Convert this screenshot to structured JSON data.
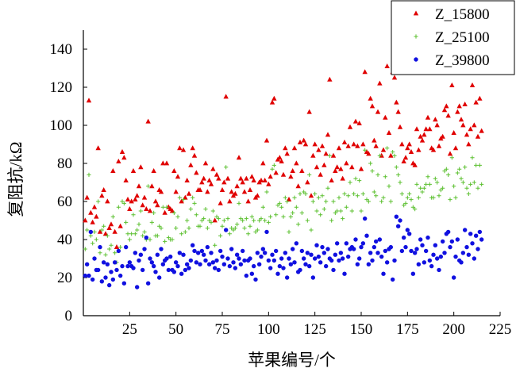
{
  "chart_data": {
    "type": "scatter",
    "xlabel": "苹果编号/个",
    "ylabel": "复阻抗/kΩ",
    "xlim": [
      0,
      225
    ],
    "ylim": [
      0,
      150
    ],
    "xticks": [
      25,
      50,
      75,
      100,
      125,
      150,
      175,
      200,
      225
    ],
    "yticks": [
      0,
      20,
      40,
      60,
      80,
      100,
      120,
      140
    ],
    "grid": false,
    "legend_position": "top-right",
    "series": [
      {
        "name": "Z_15800",
        "marker": "triangle",
        "color": "#e00000",
        "x": [
          1,
          2,
          3,
          4,
          5,
          6,
          7,
          8,
          9,
          10,
          11,
          12,
          13,
          14,
          15,
          16,
          17,
          18,
          19,
          20,
          21,
          22,
          23,
          24,
          25,
          26,
          27,
          28,
          29,
          30,
          31,
          32,
          33,
          34,
          35,
          36,
          37,
          38,
          39,
          40,
          41,
          42,
          43,
          44,
          45,
          46,
          47,
          48,
          49,
          50,
          51,
          52,
          53,
          54,
          55,
          56,
          57,
          58,
          59,
          60,
          61,
          62,
          63,
          64,
          65,
          66,
          67,
          68,
          69,
          70,
          71,
          72,
          73,
          74,
          75,
          76,
          77,
          78,
          79,
          80,
          81,
          82,
          83,
          84,
          85,
          86,
          87,
          88,
          89,
          90,
          91,
          92,
          93,
          94,
          95,
          96,
          97,
          98,
          99,
          100,
          101,
          102,
          103,
          104,
          105,
          106,
          107,
          108,
          109,
          110,
          111,
          112,
          113,
          114,
          115,
          116,
          117,
          118,
          119,
          120,
          121,
          122,
          123,
          124,
          125,
          126,
          127,
          128,
          129,
          130,
          131,
          132,
          133,
          134,
          135,
          136,
          137,
          138,
          139,
          140,
          141,
          142,
          143,
          144,
          145,
          146,
          147,
          148,
          149,
          150,
          151,
          152,
          153,
          154,
          155,
          156,
          157,
          158,
          159,
          160,
          161,
          162,
          163,
          164,
          165,
          166,
          167,
          168,
          169,
          170,
          171,
          172,
          173,
          174,
          175,
          176,
          177,
          178,
          179,
          180,
          181,
          182,
          183,
          184,
          185,
          186,
          187,
          188,
          189,
          190,
          191,
          192,
          193,
          194,
          195,
          196,
          197,
          198,
          199,
          200,
          201,
          202,
          203,
          204,
          205,
          206,
          207,
          208,
          209,
          210,
          211,
          212,
          213,
          214,
          215
        ],
        "y": [
          50,
          62,
          113,
          54,
          49,
          57,
          52,
          88,
          44,
          63,
          66,
          43,
          60,
          46,
          48,
          76,
          44,
          36,
          81,
          47,
          86,
          83,
          71,
          61,
          56,
          60,
          76,
          61,
          63,
          68,
          78,
          58,
          62,
          56,
          102,
          55,
          68,
          76,
          60,
          58,
          66,
          65,
          80,
          54,
          80,
          57,
          56,
          55,
          76,
          65,
          73,
          88,
          60,
          87,
          62,
          71,
          64,
          79,
          88,
          84,
          75,
          66,
          66,
          70,
          72,
          80,
          65,
          71,
          69,
          77,
          50,
          74,
          72,
          59,
          66,
          70,
          115,
          72,
          60,
          65,
          63,
          64,
          68,
          83,
          72,
          70,
          65,
          72,
          60,
          66,
          73,
          71,
          62,
          63,
          70,
          71,
          80,
          71,
          92,
          69,
          73,
          112,
          114,
          75,
          82,
          83,
          81,
          74,
          88,
          85,
          61,
          73,
          76,
          88,
          80,
          68,
          91,
          76,
          92,
          90,
          70,
          107,
          63,
          84,
          90,
          78,
          87,
          74,
          89,
          79,
          85,
          95,
          124,
          71,
          84,
          76,
          78,
          88,
          77,
          72,
          91,
          80,
          89,
          99,
          78,
          90,
          102,
          89,
          101,
          77,
          90,
          128,
          86,
          85,
          114,
          110,
          92,
          89,
          107,
          122,
          84,
          87,
          104,
          131,
          96,
          84,
          128,
          125,
          112,
          107,
          99,
          90,
          81,
          83,
          88,
          90,
          86,
          80,
          79,
          98,
          87,
          94,
          92,
          95,
          98,
          104,
          98,
          88,
          87,
          103,
          100,
          89,
          93,
          94,
          108,
          110,
          105,
          85,
          121,
          96,
          88,
          107,
          110,
          103,
          100,
          111,
          95,
          90,
          98,
          121,
          100,
          112,
          94,
          114,
          97
        ]
      },
      {
        "name": "Z_25100",
        "marker": "plus",
        "color": "#5cc030",
        "x": [
          1,
          2,
          3,
          4,
          5,
          6,
          7,
          8,
          9,
          10,
          11,
          12,
          13,
          14,
          15,
          16,
          17,
          18,
          19,
          20,
          21,
          22,
          23,
          24,
          25,
          26,
          27,
          28,
          29,
          30,
          31,
          32,
          33,
          34,
          35,
          36,
          37,
          38,
          39,
          40,
          41,
          42,
          43,
          44,
          45,
          46,
          47,
          48,
          49,
          50,
          51,
          52,
          53,
          54,
          55,
          56,
          57,
          58,
          59,
          60,
          61,
          62,
          63,
          64,
          65,
          66,
          67,
          68,
          69,
          70,
          71,
          72,
          73,
          74,
          75,
          76,
          77,
          78,
          79,
          80,
          81,
          82,
          83,
          84,
          85,
          86,
          87,
          88,
          89,
          90,
          91,
          92,
          93,
          94,
          95,
          96,
          97,
          98,
          99,
          100,
          101,
          102,
          103,
          104,
          105,
          106,
          107,
          108,
          109,
          110,
          111,
          112,
          113,
          114,
          115,
          116,
          117,
          118,
          119,
          120,
          121,
          122,
          123,
          124,
          125,
          126,
          127,
          128,
          129,
          130,
          131,
          132,
          133,
          134,
          135,
          136,
          137,
          138,
          139,
          140,
          141,
          142,
          143,
          144,
          145,
          146,
          147,
          148,
          149,
          150,
          151,
          152,
          153,
          154,
          155,
          156,
          157,
          158,
          159,
          160,
          161,
          162,
          163,
          164,
          165,
          166,
          167,
          168,
          169,
          170,
          171,
          172,
          173,
          174,
          175,
          176,
          177,
          178,
          179,
          180,
          181,
          182,
          183,
          184,
          185,
          186,
          187,
          188,
          189,
          190,
          191,
          192,
          193,
          194,
          195,
          196,
          197,
          198,
          199,
          200,
          201,
          202,
          203,
          204,
          205,
          206,
          207,
          208,
          209,
          210,
          211,
          212,
          213,
          214,
          215
        ],
        "y": [
          35,
          45,
          74,
          42,
          38,
          44,
          40,
          60,
          33,
          45,
          47,
          32,
          42,
          35,
          37,
          52,
          33,
          28,
          57,
          36,
          60,
          59,
          49,
          43,
          40,
          43,
          53,
          43,
          45,
          48,
          55,
          42,
          44,
          40,
          68,
          40,
          49,
          54,
          42,
          42,
          47,
          46,
          57,
          39,
          57,
          41,
          40,
          40,
          54,
          46,
          52,
          62,
          43,
          61,
          44,
          50,
          46,
          56,
          62,
          59,
          53,
          47,
          47,
          50,
          51,
          56,
          46,
          50,
          49,
          55,
          37,
          52,
          51,
          42,
          47,
          50,
          78,
          51,
          43,
          46,
          45,
          46,
          48,
          59,
          51,
          50,
          46,
          51,
          43,
          47,
          52,
          50,
          44,
          45,
          50,
          51,
          57,
          50,
          65,
          49,
          52,
          77,
          79,
          53,
          58,
          59,
          57,
          52,
          62,
          60,
          44,
          52,
          54,
          62,
          57,
          48,
          64,
          54,
          65,
          64,
          50,
          74,
          45,
          60,
          64,
          55,
          62,
          53,
          63,
          56,
          60,
          67,
          84,
          50,
          60,
          54,
          55,
          62,
          55,
          51,
          64,
          57,
          63,
          70,
          55,
          64,
          72,
          63,
          71,
          55,
          64,
          87,
          61,
          60,
          80,
          76,
          65,
          63,
          74,
          84,
          60,
          62,
          73,
          88,
          68,
          60,
          86,
          84,
          78,
          74,
          70,
          64,
          58,
          59,
          62,
          64,
          61,
          57,
          56,
          69,
          62,
          67,
          65,
          67,
          69,
          73,
          69,
          62,
          62,
          72,
          70,
          63,
          66,
          67,
          76,
          77,
          74,
          61,
          83,
          68,
          62,
          75,
          77,
          72,
          70,
          78,
          67,
          64,
          69,
          83,
          70,
          79,
          67,
          79,
          69
        ]
      },
      {
        "name": "Z_39800",
        "marker": "circle",
        "color": "#1010e0",
        "x": [
          1,
          2,
          3,
          4,
          5,
          6,
          7,
          8,
          9,
          10,
          11,
          12,
          13,
          14,
          15,
          16,
          17,
          18,
          19,
          20,
          21,
          22,
          23,
          24,
          25,
          26,
          27,
          28,
          29,
          30,
          31,
          32,
          33,
          34,
          35,
          36,
          37,
          38,
          39,
          40,
          41,
          42,
          43,
          44,
          45,
          46,
          47,
          48,
          49,
          50,
          51,
          52,
          53,
          54,
          55,
          56,
          57,
          58,
          59,
          60,
          61,
          62,
          63,
          64,
          65,
          66,
          67,
          68,
          69,
          70,
          71,
          72,
          73,
          74,
          75,
          76,
          77,
          78,
          79,
          80,
          81,
          82,
          83,
          84,
          85,
          86,
          87,
          88,
          89,
          90,
          91,
          92,
          93,
          94,
          95,
          96,
          97,
          98,
          99,
          100,
          101,
          102,
          103,
          104,
          105,
          106,
          107,
          108,
          109,
          110,
          111,
          112,
          113,
          114,
          115,
          116,
          117,
          118,
          119,
          120,
          121,
          122,
          123,
          124,
          125,
          126,
          127,
          128,
          129,
          130,
          131,
          132,
          133,
          134,
          135,
          136,
          137,
          138,
          139,
          140,
          141,
          142,
          143,
          144,
          145,
          146,
          147,
          148,
          149,
          150,
          151,
          152,
          153,
          154,
          155,
          156,
          157,
          158,
          159,
          160,
          161,
          162,
          163,
          164,
          165,
          166,
          167,
          168,
          169,
          170,
          171,
          172,
          173,
          174,
          175,
          176,
          177,
          178,
          179,
          180,
          181,
          182,
          183,
          184,
          185,
          186,
          187,
          188,
          189,
          190,
          191,
          192,
          193,
          194,
          195,
          196,
          197,
          198,
          199,
          200,
          201,
          202,
          203,
          204,
          205,
          206,
          207,
          208,
          209,
          210,
          211,
          212,
          213,
          214,
          215
        ],
        "y": [
          21,
          27,
          21,
          44,
          19,
          30,
          24,
          24,
          36,
          18,
          28,
          20,
          27,
          16,
          23,
          19,
          28,
          24,
          34,
          21,
          26,
          17,
          36,
          26,
          28,
          26,
          25,
          33,
          15,
          29,
          32,
          24,
          35,
          41,
          17,
          30,
          28,
          26,
          23,
          32,
          20,
          35,
          27,
          29,
          30,
          24,
          31,
          24,
          23,
          28,
          26,
          33,
          22,
          32,
          24,
          27,
          25,
          29,
          37,
          34,
          28,
          33,
          27,
          34,
          32,
          29,
          36,
          27,
          33,
          28,
          25,
          29,
          24,
          34,
          31,
          27,
          45,
          30,
          26,
          35,
          28,
          25,
          32,
          30,
          27,
          34,
          29,
          21,
          29,
          30,
          22,
          26,
          19,
          33,
          27,
          31,
          35,
          33,
          44,
          29,
          25,
          32,
          29,
          34,
          22,
          26,
          30,
          25,
          33,
          20,
          30,
          27,
          35,
          28,
          38,
          23,
          24,
          34,
          30,
          27,
          33,
          26,
          32,
          20,
          30,
          37,
          31,
          28,
          36,
          33,
          26,
          35,
          30,
          29,
          24,
          32,
          38,
          29,
          33,
          30,
          22,
          38,
          31,
          35,
          36,
          35,
          40,
          27,
          30,
          36,
          38,
          51,
          42,
          27,
          33,
          29,
          36,
          39,
          33,
          40,
          31,
          22,
          34,
          28,
          35,
          36,
          19,
          29,
          52,
          47,
          50,
          34,
          41,
          36,
          45,
          43,
          34,
          22,
          33,
          35,
          27,
          40,
          37,
          28,
          34,
          41,
          29,
          26,
          32,
          37,
          30,
          24,
          31,
          39,
          33,
          43,
          44,
          36,
          39,
          20,
          31,
          40,
          29,
          28,
          33,
          45,
          36,
          32,
          43,
          38,
          30,
          42,
          35,
          44,
          40
        ]
      }
    ]
  }
}
